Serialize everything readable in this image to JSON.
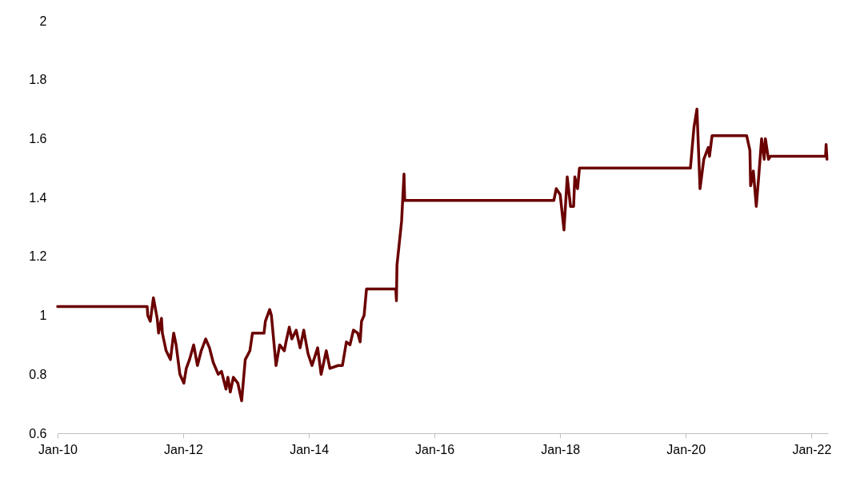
{
  "chart_data": {
    "type": "line",
    "x": [
      "2010-01-01",
      "2011-06-06",
      "2011-06-09",
      "2011-06-24",
      "2011-07-12",
      "2011-07-15",
      "2011-08-03",
      "2011-08-11",
      "2011-08-28",
      "2011-09-02",
      "2011-09-24",
      "2011-10-19",
      "2011-11-07",
      "2011-11-21",
      "2011-12-13",
      "2012-01-05",
      "2012-01-19",
      "2012-02-07",
      "2012-03-02",
      "2012-03-24",
      "2012-04-15",
      "2012-05-11",
      "2012-06-02",
      "2012-06-24",
      "2012-07-23",
      "2012-08-11",
      "2012-09-06",
      "2012-09-17",
      "2012-10-01",
      "2012-10-19",
      "2012-11-14",
      "2012-12-06",
      "2012-12-27",
      "2013-01-23",
      "2013-02-07",
      "2013-04-15",
      "2013-04-23",
      "2013-05-18",
      "2013-05-28",
      "2013-06-24",
      "2013-07-15",
      "2013-08-11",
      "2013-08-21",
      "2013-09-09",
      "2013-09-24",
      "2013-10-19",
      "2013-11-11",
      "2013-12-02",
      "2013-12-27",
      "2014-01-19",
      "2014-02-21",
      "2014-03-13",
      "2014-04-12",
      "2014-05-03",
      "2014-06-20",
      "2014-07-15",
      "2014-08-07",
      "2014-08-28",
      "2014-09-17",
      "2014-10-12",
      "2014-10-26",
      "2014-11-03",
      "2014-11-18",
      "2014-12-02",
      "2015-05-21",
      "2015-05-25",
      "2015-05-28",
      "2015-06-24",
      "2015-07-08",
      "2015-07-12",
      "2017-11-25",
      "2017-12-09",
      "2018-01-01",
      "2018-01-23",
      "2018-02-11",
      "2018-03-02",
      "2018-03-20",
      "2018-03-27",
      "2018-04-12",
      "2018-04-23",
      "2018-04-26",
      "2020-01-28",
      "2020-02-18",
      "2020-03-06",
      "2020-03-24",
      "2020-04-15",
      "2020-05-11",
      "2020-05-18",
      "2020-06-02",
      "2020-12-20",
      "2021-01-08",
      "2021-01-12",
      "2021-01-28",
      "2021-02-14",
      "2021-02-28",
      "2021-03-17",
      "2021-04-01",
      "2021-04-08",
      "2021-04-26",
      "2021-05-07",
      "2022-03-24",
      "2022-03-27",
      "2022-04-01"
    ],
    "series": [
      {
        "color": "#6b0000",
        "values": [
          1.03,
          1.03,
          1.0,
          0.98,
          1.06,
          1.05,
          0.99,
          0.94,
          0.99,
          0.94,
          0.88,
          0.85,
          0.94,
          0.9,
          0.8,
          0.77,
          0.82,
          0.85,
          0.9,
          0.83,
          0.88,
          0.92,
          0.89,
          0.84,
          0.8,
          0.81,
          0.75,
          0.79,
          0.74,
          0.79,
          0.77,
          0.71,
          0.85,
          0.88,
          0.94,
          0.94,
          0.98,
          1.02,
          1.0,
          0.83,
          0.9,
          0.88,
          0.91,
          0.96,
          0.92,
          0.95,
          0.89,
          0.95,
          0.87,
          0.83,
          0.89,
          0.8,
          0.88,
          0.82,
          0.83,
          0.83,
          0.91,
          0.9,
          0.95,
          0.94,
          0.91,
          0.98,
          1.0,
          1.09,
          1.09,
          1.05,
          1.17,
          1.32,
          1.48,
          1.39,
          1.39,
          1.43,
          1.41,
          1.29,
          1.47,
          1.37,
          1.37,
          1.47,
          1.43,
          1.5,
          1.5,
          1.5,
          1.64,
          1.7,
          1.43,
          1.53,
          1.57,
          1.54,
          1.61,
          1.61,
          1.56,
          1.44,
          1.49,
          1.37,
          1.47,
          1.6,
          1.53,
          1.6,
          1.53,
          1.54,
          1.54,
          1.58,
          1.53
        ]
      }
    ],
    "xlim": [
      "2010-01-01",
      "2022-04-07"
    ],
    "xticks": [
      {
        "value": "2010-01",
        "label": "Jan-10"
      },
      {
        "value": "2012-01",
        "label": "Jan-12"
      },
      {
        "value": "2014-01",
        "label": "Jan-14"
      },
      {
        "value": "2016-01",
        "label": "Jan-16"
      },
      {
        "value": "2018-01",
        "label": "Jan-18"
      },
      {
        "value": "2020-01",
        "label": "Jan-20"
      },
      {
        "value": "2022-01",
        "label": "Jan-22"
      }
    ],
    "ylim": [
      0.6,
      2
    ],
    "yticks": [
      0.6,
      0.8,
      1,
      1.2,
      1.4,
      1.6,
      1.8,
      2
    ],
    "grid": false,
    "marker": "none",
    "line_style": "solid"
  }
}
